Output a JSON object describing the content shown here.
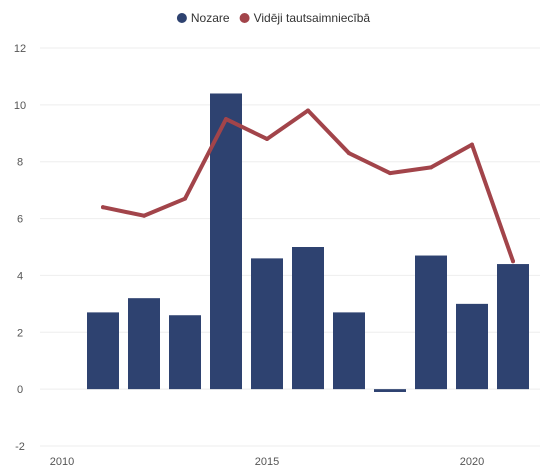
{
  "chart_data": {
    "type": "bar",
    "title": "",
    "xlabel": "",
    "ylabel": "",
    "x": [
      2011,
      2012,
      2013,
      2014,
      2015,
      2016,
      2017,
      2018,
      2019,
      2020,
      2021
    ],
    "xlim": [
      2010,
      2022
    ],
    "ylim": [
      -2,
      12
    ],
    "yticks": [
      -2,
      0,
      2,
      4,
      6,
      8,
      10,
      12
    ],
    "xticks": [
      2010,
      2015,
      2020
    ],
    "x_tick_labels": [
      "2010",
      "2015",
      "2020"
    ],
    "grid": true,
    "legend_position": "top-center",
    "series": [
      {
        "name": "Nozare",
        "type": "bar",
        "color": "#2e4270",
        "values": [
          2.7,
          3.2,
          2.6,
          10.4,
          4.6,
          5.0,
          2.7,
          -0.1,
          4.7,
          3.0,
          4.4
        ]
      },
      {
        "name": "Vidēji tautsaimniecībā",
        "type": "line",
        "color": "#a2444a",
        "values": [
          6.4,
          6.1,
          6.7,
          9.5,
          8.8,
          9.8,
          8.3,
          7.6,
          7.8,
          8.6,
          4.5
        ]
      }
    ]
  }
}
